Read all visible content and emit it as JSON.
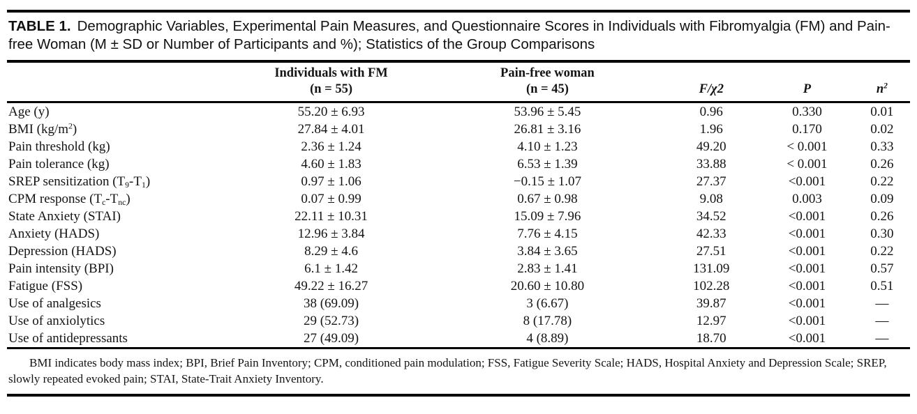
{
  "caption": {
    "label": "TABLE 1.",
    "text": "Demographic Variables, Experimental Pain Measures, and Questionnaire Scores in Individuals with Fibromyalgia (FM) and Pain-free Woman (M ± SD or Number of Participants and %); Statistics of the Group Comparisons"
  },
  "table": {
    "header": {
      "fm": {
        "line1": "Individuals with FM",
        "line2": "(n = 55)"
      },
      "pf": {
        "line1": "Pain-free woman",
        "line2": "(n = 45)"
      },
      "f": "F/χ2",
      "p": "P",
      "eta": {
        "base": "n",
        "sup": "2"
      }
    },
    "rows": [
      {
        "label": [
          "Age (y)"
        ],
        "fm": "55.20 ± 6.93",
        "pf": "53.96 ± 5.45",
        "f": "0.96",
        "p": "0.330",
        "eta": "0.01"
      },
      {
        "label": [
          "BMI (kg/m",
          {
            "sup": "2"
          },
          ")"
        ],
        "fm": "27.84 ± 4.01",
        "pf": "26.81 ± 3.16",
        "f": "1.96",
        "p": "0.170",
        "eta": "0.02"
      },
      {
        "label": [
          "Pain threshold (kg)"
        ],
        "fm": "2.36 ± 1.24",
        "pf": "4.10 ± 1.23",
        "f": "49.20",
        "p": "< 0.001",
        "eta": "0.33"
      },
      {
        "label": [
          "Pain tolerance (kg)"
        ],
        "fm": "4.60 ± 1.83",
        "pf": "6.53 ± 1.39",
        "f": "33.88",
        "p": "< 0.001",
        "eta": "0.26"
      },
      {
        "label": [
          "SREP sensitization (T",
          {
            "sub": "9"
          },
          "-T",
          {
            "sub": "1"
          },
          ")"
        ],
        "fm": "0.97 ± 1.06",
        "pf": "−0.15 ± 1.07",
        "f": "27.37",
        "p": "<0.001",
        "eta": "0.22"
      },
      {
        "label": [
          "CPM response (T",
          {
            "sub": "c"
          },
          "-T",
          {
            "sub": "nc"
          },
          ")"
        ],
        "fm": "0.07 ± 0.99",
        "pf": "0.67 ± 0.98",
        "f": "9.08",
        "p": "0.003",
        "eta": "0.09"
      },
      {
        "label": [
          "State Anxiety (STAI)"
        ],
        "fm": "22.11 ± 10.31",
        "pf": "15.09 ± 7.96",
        "f": "34.52",
        "p": "<0.001",
        "eta": "0.26"
      },
      {
        "label": [
          "Anxiety (HADS)"
        ],
        "fm": "12.96 ± 3.84",
        "pf": "7.76 ± 4.15",
        "f": "42.33",
        "p": "<0.001",
        "eta": "0.30"
      },
      {
        "label": [
          "Depression (HADS)"
        ],
        "fm": "8.29 ± 4.6",
        "pf": "3.84 ± 3.65",
        "f": "27.51",
        "p": "<0.001",
        "eta": "0.22"
      },
      {
        "label": [
          "Pain intensity (BPI)"
        ],
        "fm": "6.1 ± 1.42",
        "pf": "2.83 ± 1.41",
        "f": "131.09",
        "p": "<0.001",
        "eta": "0.57"
      },
      {
        "label": [
          "Fatigue (FSS)"
        ],
        "fm": "49.22 ± 16.27",
        "pf": "20.60 ± 10.80",
        "f": "102.28",
        "p": "<0.001",
        "eta": "0.51"
      },
      {
        "label": [
          "Use of analgesics"
        ],
        "fm": "38 (69.09)",
        "pf": "3 (6.67)",
        "f": "39.87",
        "p": "<0.001",
        "eta": "—"
      },
      {
        "label": [
          "Use of anxiolytics"
        ],
        "fm": "29 (52.73)",
        "pf": "8 (17.78)",
        "f": "12.97",
        "p": "<0.001",
        "eta": "—"
      },
      {
        "label": [
          "Use of antidepressants"
        ],
        "fm": "27 (49.09)",
        "pf": "4 (8.89)",
        "f": "18.70",
        "p": "<0.001",
        "eta": "—"
      }
    ]
  },
  "footnote": "BMI indicates body mass index; BPI, Brief Pain Inventory; CPM, conditioned pain modulation; FSS, Fatigue Severity Scale; HADS, Hospital Anxiety and Depression Scale; SREP, slowly repeated evoked pain; STAI, State-Trait Anxiety Inventory."
}
